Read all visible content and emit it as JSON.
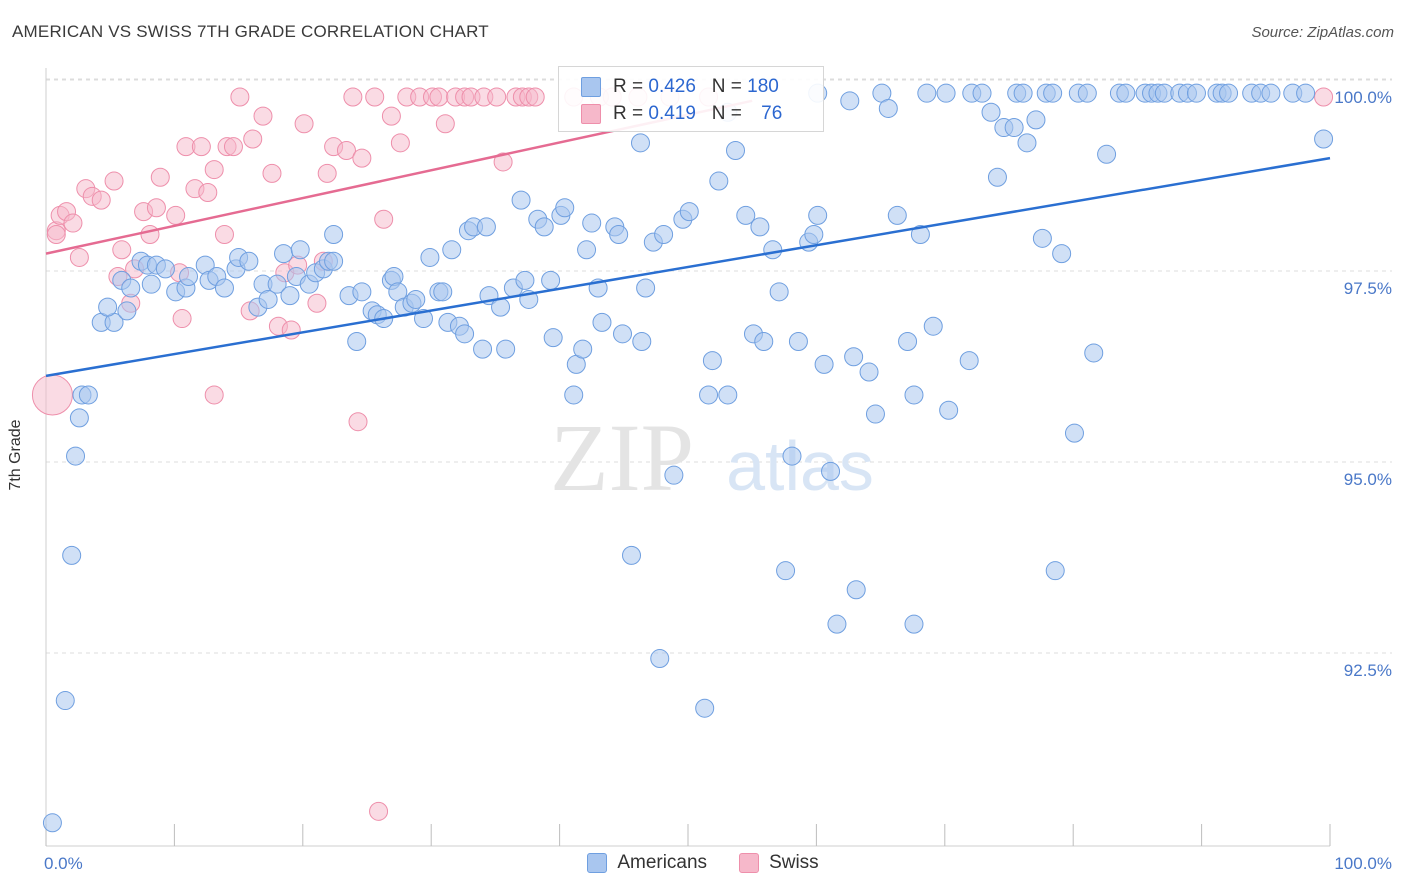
{
  "header": {
    "title": "AMERICAN VS SWISS 7TH GRADE CORRELATION CHART",
    "source": "Source: ZipAtlas.com"
  },
  "colors": {
    "americans_fill": "#a9c6ef",
    "americans_stroke": "#6f9fe0",
    "americans_line": "#2a6fd1",
    "swiss_fill": "#f6b8ca",
    "swiss_stroke": "#ee8fab",
    "swiss_line": "#e56b92",
    "axis_text": "#4a78c8",
    "grid": "#dcdcdc"
  },
  "legend_top": {
    "rows": [
      {
        "r_label": "R = ",
        "r_value": "0.426",
        "n_label": "N = ",
        "n_value": "180"
      },
      {
        "r_label": "R = ",
        "r_value": "0.419",
        "n_label": "N = ",
        "n_value": "76"
      }
    ]
  },
  "legend_bottom": {
    "americans": "Americans",
    "swiss": "Swiss"
  },
  "watermark": {
    "zip": "ZIP",
    "atlas": "atlas"
  },
  "chart_data": {
    "type": "scatter",
    "title": "AMERICAN VS SWISS 7TH GRADE CORRELATION CHART",
    "xlabel": "",
    "ylabel": "7th Grade",
    "xlim": [
      0,
      100
    ],
    "ylim": [
      90.0,
      100.2
    ],
    "x_tick_labels": [
      "0.0%",
      "100.0%"
    ],
    "y_ticks": [
      92.5,
      95.0,
      97.5,
      100.0
    ],
    "y_tick_labels": [
      "92.5%",
      "95.0%",
      "97.5%",
      "100.0%"
    ],
    "grid": true,
    "legend_placement": "top-center",
    "series": [
      {
        "name": "Americans",
        "r": 0.426,
        "n": 180,
        "trend": {
          "x": [
            0,
            100
          ],
          "y": [
            96.35,
            99.2
          ]
        },
        "points": [
          [
            0.5,
            90.5
          ],
          [
            1.5,
            92.1
          ],
          [
            2,
            94.0
          ],
          [
            2.3,
            95.3
          ],
          [
            2.6,
            95.8
          ],
          [
            2.8,
            96.1
          ],
          [
            3.3,
            96.1
          ],
          [
            4.3,
            97.05
          ],
          [
            5.3,
            97.05
          ],
          [
            4.8,
            97.25
          ],
          [
            6.3,
            97.2
          ],
          [
            5.9,
            97.6
          ],
          [
            6.6,
            97.5
          ],
          [
            7.4,
            97.85
          ],
          [
            7.9,
            97.8
          ],
          [
            8.2,
            97.55
          ],
          [
            8.6,
            97.8
          ],
          [
            9.3,
            97.75
          ],
          [
            10.1,
            97.45
          ],
          [
            10.9,
            97.5
          ],
          [
            11.1,
            97.65
          ],
          [
            12.4,
            97.8
          ],
          [
            12.7,
            97.6
          ],
          [
            13.3,
            97.65
          ],
          [
            13.9,
            97.5
          ],
          [
            14.8,
            97.75
          ],
          [
            15,
            97.9
          ],
          [
            15.8,
            97.85
          ],
          [
            16.5,
            97.25
          ],
          [
            16.9,
            97.55
          ],
          [
            17.3,
            97.35
          ],
          [
            18,
            97.55
          ],
          [
            18.5,
            97.95
          ],
          [
            19,
            97.4
          ],
          [
            19.5,
            97.65
          ],
          [
            19.8,
            98.0
          ],
          [
            20.5,
            97.55
          ],
          [
            21,
            97.7
          ],
          [
            21.6,
            97.75
          ],
          [
            22,
            97.85
          ],
          [
            22.4,
            97.85
          ],
          [
            22.4,
            98.2
          ],
          [
            23.6,
            97.4
          ],
          [
            24.2,
            96.8
          ],
          [
            24.6,
            97.45
          ],
          [
            25.4,
            97.2
          ],
          [
            25.8,
            97.15
          ],
          [
            26.3,
            97.1
          ],
          [
            26.9,
            97.6
          ],
          [
            27.1,
            97.65
          ],
          [
            27.4,
            97.45
          ],
          [
            27.9,
            97.25
          ],
          [
            28.5,
            97.3
          ],
          [
            28.8,
            97.35
          ],
          [
            29.4,
            97.1
          ],
          [
            29.9,
            97.9
          ],
          [
            30.6,
            97.45
          ],
          [
            30.9,
            97.45
          ],
          [
            31.3,
            97.05
          ],
          [
            31.6,
            98.0
          ],
          [
            32.2,
            97.0
          ],
          [
            32.6,
            96.9
          ],
          [
            32.9,
            98.25
          ],
          [
            33.3,
            98.3
          ],
          [
            34,
            96.7
          ],
          [
            34.5,
            97.4
          ],
          [
            34.3,
            98.3
          ],
          [
            35.4,
            97.25
          ],
          [
            35.8,
            96.7
          ],
          [
            36.4,
            97.5
          ],
          [
            37,
            98.65
          ],
          [
            37.3,
            97.6
          ],
          [
            37.6,
            97.35
          ],
          [
            38.3,
            98.4
          ],
          [
            38.8,
            98.3
          ],
          [
            39.3,
            97.6
          ],
          [
            39.5,
            96.85
          ],
          [
            40.1,
            98.45
          ],
          [
            40.4,
            98.55
          ],
          [
            41.1,
            96.1
          ],
          [
            41.3,
            96.5
          ],
          [
            41.8,
            96.7
          ],
          [
            42.1,
            98.0
          ],
          [
            42.5,
            98.35
          ],
          [
            43,
            97.5
          ],
          [
            43.3,
            97.05
          ],
          [
            44.3,
            98.3
          ],
          [
            44.6,
            98.2
          ],
          [
            44.9,
            96.9
          ],
          [
            45.6,
            94.0
          ],
          [
            46.4,
            96.8
          ],
          [
            46.7,
            97.5
          ],
          [
            46.3,
            99.4
          ],
          [
            47.3,
            98.1
          ],
          [
            47.8,
            92.65
          ],
          [
            48.1,
            98.2
          ],
          [
            48.9,
            95.05
          ],
          [
            49.6,
            98.4
          ],
          [
            50.1,
            98.5
          ],
          [
            51.3,
            92.0
          ],
          [
            51.6,
            96.1
          ],
          [
            51.9,
            96.55
          ],
          [
            52.4,
            98.9
          ],
          [
            53.1,
            96.1
          ],
          [
            53.7,
            99.3
          ],
          [
            54.5,
            98.45
          ],
          [
            55.1,
            96.9
          ],
          [
            55.6,
            98.3
          ],
          [
            55.9,
            96.8
          ],
          [
            56.6,
            98.0
          ],
          [
            57.1,
            97.45
          ],
          [
            57.6,
            93.8
          ],
          [
            58.1,
            95.3
          ],
          [
            58.6,
            96.8
          ],
          [
            59.4,
            98.1
          ],
          [
            59.8,
            98.2
          ],
          [
            60.1,
            98.45
          ],
          [
            60.6,
            96.5
          ],
          [
            61.1,
            95.1
          ],
          [
            61.6,
            93.1
          ],
          [
            62.6,
            99.95
          ],
          [
            62.9,
            96.6
          ],
          [
            63.1,
            93.55
          ],
          [
            64.1,
            96.4
          ],
          [
            64.6,
            95.85
          ],
          [
            66.3,
            98.45
          ],
          [
            67.6,
            93.1
          ],
          [
            68.1,
            98.2
          ],
          [
            67.1,
            96.8
          ],
          [
            67.6,
            96.1
          ],
          [
            69.1,
            97.0
          ],
          [
            70.3,
            95.9
          ],
          [
            71.9,
            96.55
          ],
          [
            73.6,
            99.8
          ],
          [
            74.1,
            98.95
          ],
          [
            74.6,
            99.6
          ],
          [
            75.4,
            99.6
          ],
          [
            76.4,
            99.4
          ],
          [
            77.1,
            99.7
          ],
          [
            77.6,
            98.15
          ],
          [
            78.6,
            93.8
          ],
          [
            79.1,
            97.95
          ],
          [
            80.1,
            95.6
          ],
          [
            81.6,
            96.65
          ],
          [
            82.6,
            99.25
          ],
          [
            83.6,
            100.05
          ],
          [
            84.1,
            100.05
          ],
          [
            85.6,
            100.05
          ],
          [
            86.1,
            100.05
          ],
          [
            86.6,
            100.05
          ],
          [
            87.1,
            100.05
          ],
          [
            88.3,
            100.05
          ],
          [
            88.9,
            100.05
          ],
          [
            89.6,
            100.05
          ],
          [
            91.2,
            100.05
          ],
          [
            91.6,
            100.05
          ],
          [
            92.1,
            100.05
          ],
          [
            93.9,
            100.05
          ],
          [
            94.6,
            100.05
          ],
          [
            95.4,
            100.05
          ],
          [
            97.1,
            100.05
          ],
          [
            98.1,
            100.05
          ],
          [
            99.5,
            99.45
          ],
          [
            60.1,
            100.05
          ],
          [
            65.1,
            100.05
          ],
          [
            65.6,
            99.85
          ],
          [
            68.6,
            100.05
          ],
          [
            70.1,
            100.05
          ],
          [
            72.1,
            100.05
          ],
          [
            72.9,
            100.05
          ],
          [
            75.6,
            100.05
          ],
          [
            76.1,
            100.05
          ],
          [
            77.9,
            100.05
          ],
          [
            78.4,
            100.05
          ],
          [
            80.4,
            100.05
          ],
          [
            81.1,
            100.05
          ],
          [
            53.1,
            99.8
          ]
        ]
      },
      {
        "name": "Swiss",
        "r": 0.419,
        "n": 76,
        "trend": {
          "x": [
            0,
            55
          ],
          "y": [
            97.95,
            99.95
          ]
        },
        "points": [
          [
            0.5,
            96.1
          ],
          [
            0.8,
            98.25
          ],
          [
            1.1,
            98.45
          ],
          [
            1.6,
            98.5
          ],
          [
            2.1,
            98.35
          ],
          [
            2.6,
            97.9
          ],
          [
            3.1,
            98.8
          ],
          [
            3.6,
            98.7
          ],
          [
            4.3,
            98.65
          ],
          [
            5.3,
            98.9
          ],
          [
            5.6,
            97.65
          ],
          [
            5.9,
            98.0
          ],
          [
            6.6,
            97.3
          ],
          [
            6.9,
            97.75
          ],
          [
            7.6,
            98.5
          ],
          [
            8.1,
            98.2
          ],
          [
            8.6,
            98.55
          ],
          [
            8.9,
            98.95
          ],
          [
            10.1,
            98.45
          ],
          [
            10.4,
            97.7
          ],
          [
            10.6,
            97.1
          ],
          [
            10.9,
            99.35
          ],
          [
            11.6,
            98.8
          ],
          [
            12.1,
            99.35
          ],
          [
            12.6,
            98.75
          ],
          [
            13.1,
            99.05
          ],
          [
            13.1,
            96.1
          ],
          [
            13.9,
            98.2
          ],
          [
            14.1,
            99.35
          ],
          [
            14.6,
            99.35
          ],
          [
            15.1,
            100.0
          ],
          [
            15.9,
            97.2
          ],
          [
            16.1,
            99.45
          ],
          [
            16.9,
            99.75
          ],
          [
            17.6,
            99.0
          ],
          [
            18.1,
            97.0
          ],
          [
            18.6,
            97.7
          ],
          [
            19.1,
            96.95
          ],
          [
            19.6,
            97.8
          ],
          [
            20.1,
            99.65
          ],
          [
            21.1,
            97.3
          ],
          [
            21.6,
            97.85
          ],
          [
            21.9,
            99.0
          ],
          [
            22.4,
            99.35
          ],
          [
            23.4,
            99.3
          ],
          [
            23.9,
            100.0
          ],
          [
            24.3,
            95.75
          ],
          [
            24.6,
            99.2
          ],
          [
            25.6,
            100.0
          ],
          [
            25.9,
            90.65
          ],
          [
            26.3,
            98.4
          ],
          [
            26.9,
            99.75
          ],
          [
            27.6,
            99.4
          ],
          [
            28.1,
            100.0
          ],
          [
            29.1,
            100.0
          ],
          [
            30.1,
            100.0
          ],
          [
            30.6,
            100.0
          ],
          [
            31.1,
            99.65
          ],
          [
            31.9,
            100.0
          ],
          [
            32.6,
            100.0
          ],
          [
            33.1,
            100.0
          ],
          [
            34.1,
            100.0
          ],
          [
            35.1,
            100.0
          ],
          [
            35.6,
            99.15
          ],
          [
            36.6,
            100.0
          ],
          [
            37.1,
            100.0
          ],
          [
            37.6,
            100.0
          ],
          [
            38.1,
            100.0
          ],
          [
            41.1,
            100.0
          ],
          [
            43.1,
            100.0
          ],
          [
            44.1,
            100.0
          ],
          [
            46.1,
            100.0
          ],
          [
            48.6,
            100.0
          ],
          [
            51.6,
            100.0
          ],
          [
            99.5,
            100.0
          ],
          [
            0.8,
            98.2
          ]
        ]
      }
    ]
  }
}
